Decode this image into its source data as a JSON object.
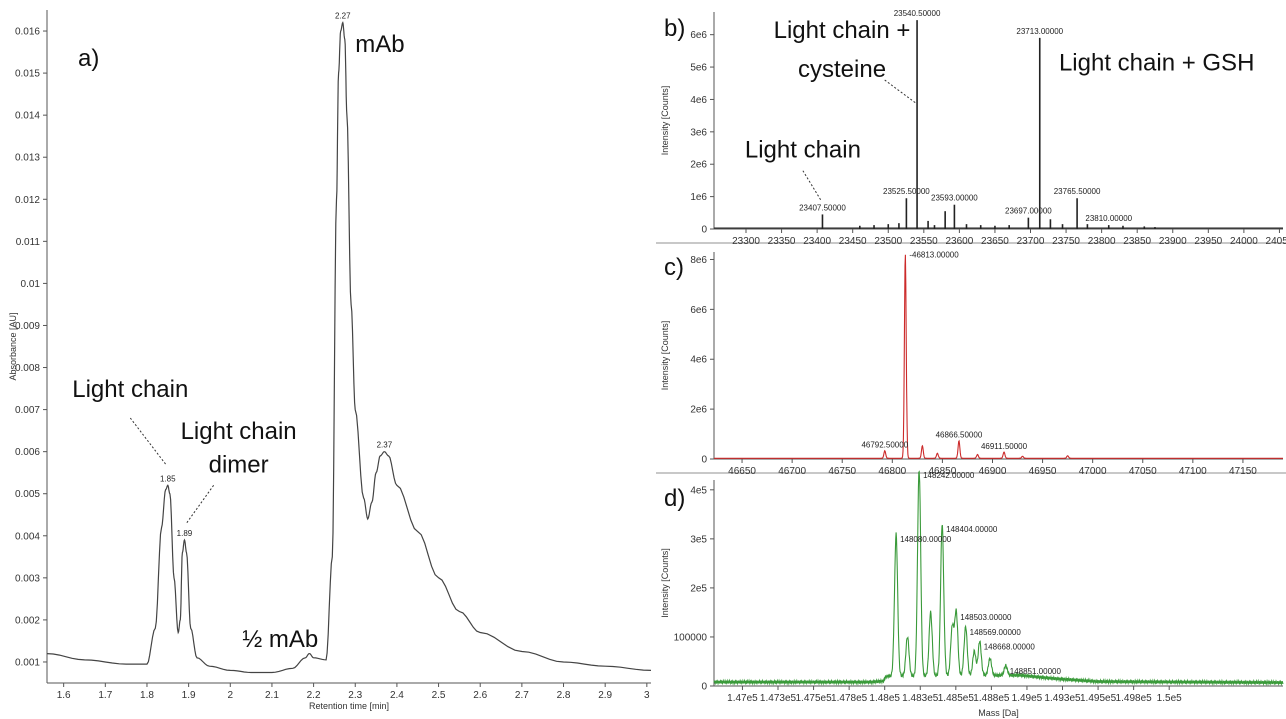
{
  "chart_data": [
    {
      "panel": "a)",
      "type": "line",
      "xlabel": "Retention time [min]",
      "ylabel": "Absorbance [AU]",
      "xlim": [
        1.56,
        3.01
      ],
      "ylim": [
        0.0005,
        0.0165
      ],
      "x_ticks": [
        "1.6",
        "1.7",
        "1.8",
        "1.9",
        "2",
        "2.1",
        "2.2",
        "2.3",
        "2.4",
        "2.5",
        "2.6",
        "2.7",
        "2.8",
        "2.9",
        "3"
      ],
      "y_ticks": [
        "0.001",
        "0.002",
        "0.003",
        "0.004",
        "0.005",
        "0.006",
        "0.007",
        "0.008",
        "0.009",
        "0.01",
        "0.011",
        "0.012",
        "0.013",
        "0.014",
        "0.015",
        "0.016"
      ],
      "color": "#444444",
      "series": [
        {
          "x": [
            1.56,
            1.65,
            1.75,
            1.8,
            1.82,
            1.835,
            1.845,
            1.85,
            1.855,
            1.865,
            1.875,
            1.88,
            1.885,
            1.89,
            1.895,
            1.905,
            1.92,
            1.95,
            2.0,
            2.05,
            2.1,
            2.15,
            2.18,
            2.19,
            2.2,
            2.23,
            2.245,
            2.255,
            2.26,
            2.265,
            2.27,
            2.275,
            2.28,
            2.29,
            2.3,
            2.32,
            2.33,
            2.34,
            2.35,
            2.36,
            2.37,
            2.38,
            2.4,
            2.45,
            2.5,
            2.55,
            2.6,
            2.7,
            2.8,
            2.9,
            3.01
          ],
          "y": [
            0.0012,
            0.00105,
            0.00095,
            0.00095,
            0.0018,
            0.0042,
            0.0051,
            0.0052,
            0.005,
            0.003,
            0.0017,
            0.002,
            0.0036,
            0.0039,
            0.0036,
            0.0018,
            0.0011,
            0.0009,
            0.0008,
            0.00075,
            0.00075,
            0.00085,
            0.0011,
            0.0012,
            0.0011,
            0.00105,
            0.0035,
            0.012,
            0.015,
            0.016,
            0.0162,
            0.0158,
            0.014,
            0.0095,
            0.007,
            0.0049,
            0.0044,
            0.0048,
            0.0055,
            0.0059,
            0.006,
            0.0059,
            0.0052,
            0.0041,
            0.003,
            0.0022,
            0.0017,
            0.00125,
            0.001,
            0.0009,
            0.0008
          ]
        }
      ],
      "peak_labels": [
        {
          "x": 1.85,
          "y": 0.0052,
          "label": "1.85"
        },
        {
          "x": 1.89,
          "y": 0.0039,
          "label": "1.89"
        },
        {
          "x": 2.27,
          "y": 0.0162,
          "label": "2.27"
        },
        {
          "x": 2.37,
          "y": 0.006,
          "label": "2.37"
        }
      ],
      "annotations": [
        {
          "text": "mAb",
          "x": 2.3,
          "y": 0.0155,
          "anchor": "start"
        },
        {
          "text": "Light chain",
          "x": 1.76,
          "y": 0.0073,
          "anchor": "middle"
        },
        {
          "text": "Light chain",
          "x": 2.02,
          "y": 0.0063,
          "anchor": "middle"
        },
        {
          "text": "dimer",
          "x": 2.02,
          "y": 0.0055,
          "anchor": "middle"
        },
        {
          "text": "½ mAb",
          "x": 2.12,
          "y": 0.00135,
          "anchor": "middle"
        }
      ],
      "leaders": [
        {
          "x1": 1.76,
          "y1": 0.0068,
          "x2": 1.845,
          "y2": 0.0057
        },
        {
          "x1": 1.96,
          "y1": 0.0052,
          "x2": 1.895,
          "y2": 0.0043
        }
      ]
    },
    {
      "panel": "b)",
      "type": "bar",
      "ylabel": "Intensity [Counts]",
      "xlim": [
        23255,
        24055
      ],
      "ylim": [
        0,
        6700000
      ],
      "x_ticks": [
        "23300",
        "23350",
        "23400",
        "23450",
        "23500",
        "23550",
        "23600",
        "23650",
        "23700",
        "23750",
        "23800",
        "23850",
        "23900",
        "23950",
        "24000",
        "24050"
      ],
      "y_ticks": [
        "0",
        "1e6",
        "2e6",
        "3e6",
        "4e6",
        "5e6",
        "6e6"
      ],
      "color": "#222222",
      "peaks": [
        {
          "x": 23407.5,
          "y": 450000
        },
        {
          "x": 23460,
          "y": 100000
        },
        {
          "x": 23480,
          "y": 120000
        },
        {
          "x": 23500,
          "y": 150000
        },
        {
          "x": 23515,
          "y": 180000
        },
        {
          "x": 23525.5,
          "y": 950000
        },
        {
          "x": 23540.5,
          "y": 6450000
        },
        {
          "x": 23556,
          "y": 250000
        },
        {
          "x": 23565,
          "y": 120000
        },
        {
          "x": 23580,
          "y": 550000
        },
        {
          "x": 23593,
          "y": 750000
        },
        {
          "x": 23610,
          "y": 150000
        },
        {
          "x": 23630,
          "y": 120000
        },
        {
          "x": 23650,
          "y": 100000
        },
        {
          "x": 23670,
          "y": 120000
        },
        {
          "x": 23697,
          "y": 350000
        },
        {
          "x": 23713,
          "y": 5900000
        },
        {
          "x": 23728,
          "y": 300000
        },
        {
          "x": 23745,
          "y": 150000
        },
        {
          "x": 23765.5,
          "y": 950000
        },
        {
          "x": 23780,
          "y": 150000
        },
        {
          "x": 23810,
          "y": 120000
        },
        {
          "x": 23830,
          "y": 100000
        },
        {
          "x": 23860,
          "y": 80000
        },
        {
          "x": 23875,
          "y": 60000
        }
      ],
      "peak_labels": [
        {
          "x": 23407.5,
          "y": 450000,
          "label": "23407.50000"
        },
        {
          "x": 23525.5,
          "y": 950000,
          "label": "23525.50000"
        },
        {
          "x": 23540.5,
          "y": 6450000,
          "label": "23540.50000"
        },
        {
          "x": 23593,
          "y": 750000,
          "label": "23593.00000"
        },
        {
          "x": 23697,
          "y": 350000,
          "label": "23697.00000"
        },
        {
          "x": 23713,
          "y": 5900000,
          "label": "23713.00000"
        },
        {
          "x": 23765.5,
          "y": 950000,
          "label": "23765.50000"
        },
        {
          "x": 23810,
          "y": 120000,
          "label": "23810.00000"
        }
      ],
      "annotations": [
        {
          "text": "Light chain +",
          "x": 23435,
          "y": 5900000,
          "anchor": "middle"
        },
        {
          "text": "cysteine",
          "x": 23435,
          "y": 4700000,
          "anchor": "middle"
        },
        {
          "text": "Light chain + GSH",
          "x": 23740,
          "y": 4900000,
          "anchor": "start"
        },
        {
          "text": "Light chain",
          "x": 23380,
          "y": 2200000,
          "anchor": "middle"
        }
      ],
      "leaders": [
        {
          "x1": 23495,
          "y1": 4600000,
          "x2": 23538,
          "y2": 3900000
        },
        {
          "x1": 23380,
          "y1": 1800000,
          "x2": 23405,
          "y2": 900000
        }
      ]
    },
    {
      "panel": "c)",
      "type": "line",
      "ylabel": "Intensity [Counts]",
      "xlim": [
        46622,
        47190
      ],
      "ylim": [
        0,
        8300000
      ],
      "x_ticks": [
        "46650",
        "46700",
        "46750",
        "46800",
        "46850",
        "46900",
        "46950",
        "47000",
        "47050",
        "47100",
        "47150"
      ],
      "y_ticks": [
        "0",
        "2e6",
        "4e6",
        "6e6",
        "8e6"
      ],
      "color": "#cc2a2a",
      "peaks": [
        {
          "x": 46792.5,
          "y": 300000
        },
        {
          "x": 46813,
          "y": 8200000
        },
        {
          "x": 46830,
          "y": 500000
        },
        {
          "x": 46845,
          "y": 200000
        },
        {
          "x": 46866.5,
          "y": 700000
        },
        {
          "x": 46885,
          "y": 150000
        },
        {
          "x": 46911.5,
          "y": 250000
        },
        {
          "x": 46930,
          "y": 80000
        },
        {
          "x": 46975,
          "y": 100000
        }
      ],
      "peak_labels": [
        {
          "x": 46813,
          "y": 8200000,
          "label": "46813.00000"
        },
        {
          "x": 46792.5,
          "y": 300000,
          "label": "46792.50000"
        },
        {
          "x": 46866.5,
          "y": 700000,
          "label": "46866.50000"
        },
        {
          "x": 46911.5,
          "y": 250000,
          "label": "46911.50000"
        }
      ]
    },
    {
      "panel": "d)",
      "type": "line",
      "ylabel": "Intensity [Counts]",
      "xlabel": "Mass [Da]",
      "xlim": [
        146800,
        150800
      ],
      "ylim": [
        0,
        420000
      ],
      "x_ticks": [
        "1.47e5",
        "1.473e5",
        "1.475e5",
        "1.478e5",
        "1.48e5",
        "1.483e5",
        "1.485e5",
        "1.488e5",
        "1.49e5",
        "1.493e5",
        "1.495e5",
        "1.498e5",
        "1.5e5"
      ],
      "x_tick_values": [
        147000,
        147250,
        147500,
        147750,
        148000,
        148250,
        148500,
        148750,
        149000,
        149250,
        149500,
        149750,
        150000
      ],
      "y_ticks": [
        "0",
        "100000",
        "2e5",
        "3e5",
        "4e5"
      ],
      "y_tick_values": [
        0,
        100000,
        200000,
        300000,
        400000
      ],
      "color": "#3a9a3a",
      "baseline_x": [
        146800,
        147900,
        147990,
        148010,
        148950,
        149200,
        149500,
        150800
      ],
      "baseline_y": [
        8000,
        8000,
        10000,
        20000,
        22000,
        15000,
        9000,
        7000
      ],
      "peaks": [
        {
          "x": 148080,
          "y": 290000
        },
        {
          "x": 148160,
          "y": 80000
        },
        {
          "x": 148242,
          "y": 420000
        },
        {
          "x": 148323,
          "y": 130000
        },
        {
          "x": 148404,
          "y": 310000
        },
        {
          "x": 148475,
          "y": 100000
        },
        {
          "x": 148503,
          "y": 130000
        },
        {
          "x": 148569,
          "y": 100000
        },
        {
          "x": 148630,
          "y": 50000
        },
        {
          "x": 148668,
          "y": 70000
        },
        {
          "x": 148740,
          "y": 35000
        },
        {
          "x": 148851,
          "y": 20000
        }
      ],
      "peak_labels": [
        {
          "x": 148080,
          "y": 290000,
          "label": "148080.00000"
        },
        {
          "x": 148242,
          "y": 420000,
          "label": "148242.00000"
        },
        {
          "x": 148404,
          "y": 310000,
          "label": "148404.00000"
        },
        {
          "x": 148503,
          "y": 130000,
          "label": "148503.00000"
        },
        {
          "x": 148569,
          "y": 100000,
          "label": "148569.00000"
        },
        {
          "x": 148668,
          "y": 70000,
          "label": "148668.00000"
        },
        {
          "x": 148851,
          "y": 20000,
          "label": "148851.00000"
        }
      ]
    }
  ]
}
